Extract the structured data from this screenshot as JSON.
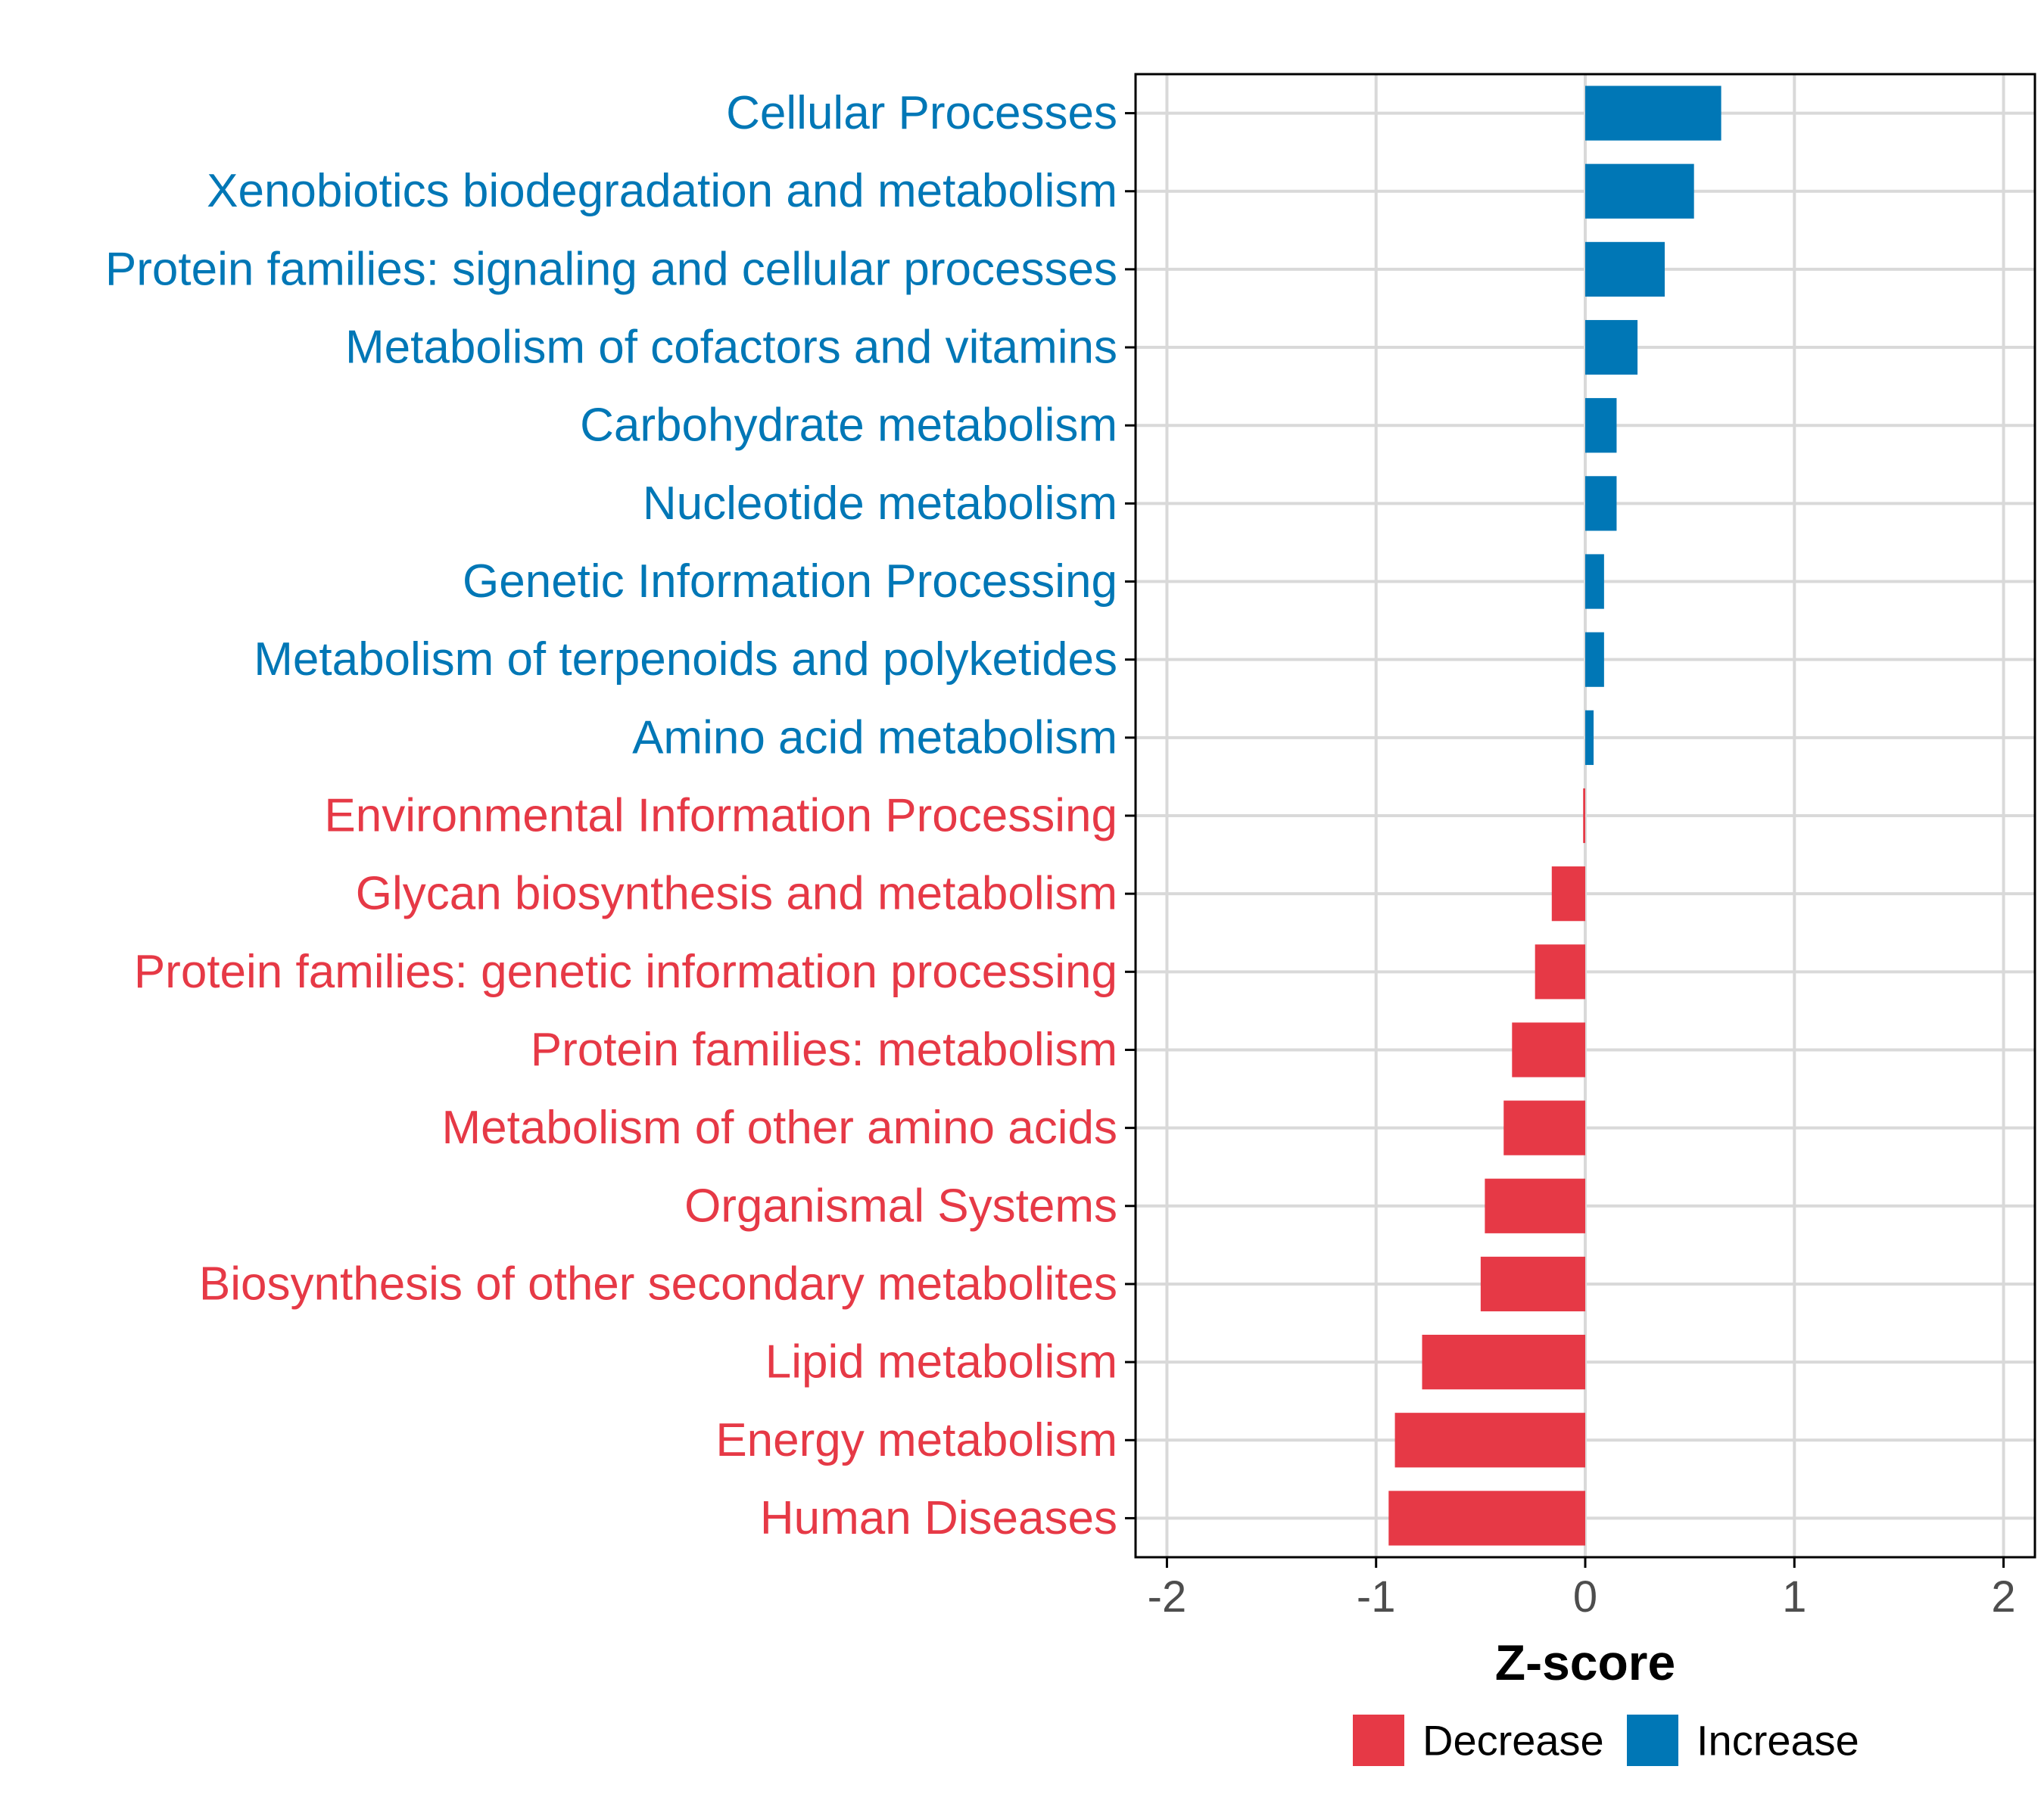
{
  "colors": {
    "decrease": "#E63946",
    "increase": "#0077B6",
    "grid": "#d9d9d9",
    "axis": "#000000",
    "tick_text": "#4d4d4d"
  },
  "chart_data": {
    "type": "bar",
    "orientation": "horizontal",
    "title": "",
    "xlabel": "Z-score",
    "ylabel": "",
    "xlim": [
      -2.15,
      2.15
    ],
    "xticks": [
      -2,
      -1,
      0,
      1,
      2
    ],
    "grid": true,
    "legend_position": "bottom",
    "categories": [
      "Cellular Processes",
      "Xenobiotics biodegradation and metabolism",
      "Protein families: signaling and cellular processes",
      "Metabolism of cofactors and vitamins",
      "Carbohydrate metabolism",
      "Nucleotide metabolism",
      "Genetic Information Processing",
      "Metabolism of terpenoids and polyketides",
      "Amino acid metabolism",
      "Environmental Information Processing",
      "Glycan biosynthesis and metabolism",
      "Protein families: genetic information processing",
      "Protein families: metabolism",
      "Metabolism of other amino acids",
      "Organismal Systems",
      "Biosynthesis of other secondary metabolites",
      "Lipid metabolism",
      "Energy metabolism",
      "Human Diseases"
    ],
    "values": [
      0.65,
      0.52,
      0.38,
      0.25,
      0.15,
      0.15,
      0.09,
      0.09,
      0.04,
      -0.01,
      -0.16,
      -0.24,
      -0.35,
      -0.39,
      -0.48,
      -0.5,
      -0.78,
      -0.91,
      -0.94
    ],
    "groups": [
      "Increase",
      "Increase",
      "Increase",
      "Increase",
      "Increase",
      "Increase",
      "Increase",
      "Increase",
      "Increase",
      "Decrease",
      "Decrease",
      "Decrease",
      "Decrease",
      "Decrease",
      "Decrease",
      "Decrease",
      "Decrease",
      "Decrease",
      "Decrease"
    ],
    "legend": [
      {
        "name": "Decrease",
        "color_key": "decrease"
      },
      {
        "name": "Increase",
        "color_key": "increase"
      }
    ]
  }
}
